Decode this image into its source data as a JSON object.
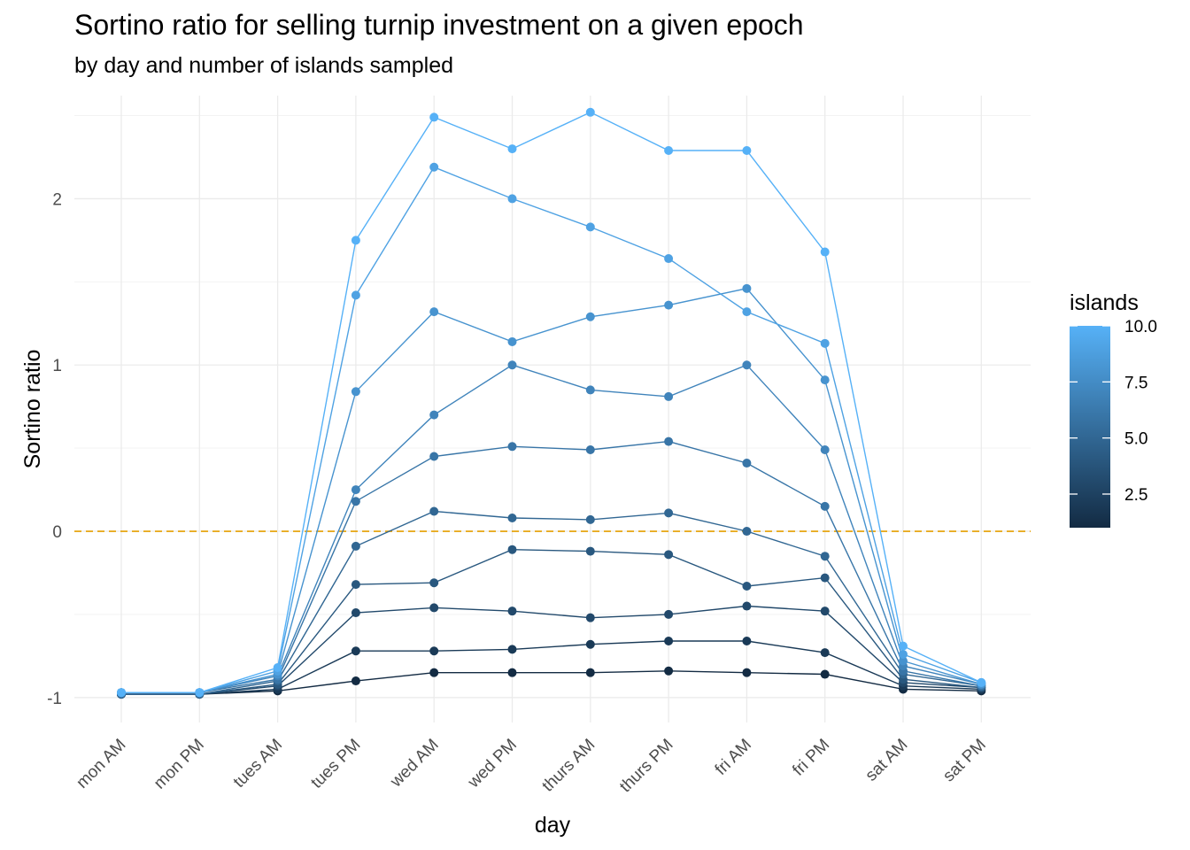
{
  "chart_data": {
    "type": "line",
    "title": "Sortino ratio for selling turnip investment on a given epoch",
    "subtitle": "by day and number of islands sampled",
    "xlabel": "day",
    "ylabel": "Sortino ratio",
    "ylim": [
      -1.15,
      2.62
    ],
    "yticks": [
      -1,
      0,
      1,
      2
    ],
    "grid": true,
    "categories": [
      "mon AM",
      "mon PM",
      "tues AM",
      "tues PM",
      "wed AM",
      "wed PM",
      "thurs AM",
      "thurs PM",
      "fri AM",
      "fri PM",
      "sat AM",
      "sat PM"
    ],
    "reference_line": {
      "y": 0,
      "color": "#E69F00",
      "style": "dashed"
    },
    "legend": {
      "title": "islands",
      "position": "right",
      "type": "colorbar",
      "range": [
        1,
        10
      ],
      "ticks": [
        "2.5",
        "5.0",
        "7.5",
        "10.0"
      ],
      "tick_values": [
        2.5,
        5.0,
        7.5,
        10.0
      ],
      "low_color": "#132B43",
      "high_color": "#56B1F7"
    },
    "series": [
      {
        "islands": 1,
        "values": [
          -0.98,
          -0.98,
          -0.96,
          -0.9,
          -0.85,
          -0.85,
          -0.85,
          -0.84,
          -0.85,
          -0.86,
          -0.95,
          -0.96
        ]
      },
      {
        "islands": 2,
        "values": [
          -0.98,
          -0.98,
          -0.95,
          -0.72,
          -0.72,
          -0.71,
          -0.68,
          -0.66,
          -0.66,
          -0.73,
          -0.93,
          -0.95
        ]
      },
      {
        "islands": 3,
        "values": [
          -0.98,
          -0.98,
          -0.93,
          -0.49,
          -0.46,
          -0.48,
          -0.52,
          -0.5,
          -0.45,
          -0.48,
          -0.91,
          -0.94
        ]
      },
      {
        "islands": 4,
        "values": [
          -0.98,
          -0.98,
          -0.92,
          -0.32,
          -0.31,
          -0.11,
          -0.12,
          -0.14,
          -0.33,
          -0.28,
          -0.89,
          -0.94
        ]
      },
      {
        "islands": 5,
        "values": [
          -0.98,
          -0.98,
          -0.9,
          -0.09,
          0.12,
          0.08,
          0.07,
          0.11,
          0.0,
          -0.15,
          -0.86,
          -0.93
        ]
      },
      {
        "islands": 6,
        "values": [
          -0.97,
          -0.97,
          -0.89,
          0.18,
          0.45,
          0.51,
          0.49,
          0.54,
          0.41,
          0.15,
          -0.84,
          -0.93
        ]
      },
      {
        "islands": 7,
        "values": [
          -0.97,
          -0.97,
          -0.87,
          0.25,
          0.7,
          1.0,
          0.85,
          0.81,
          1.0,
          0.49,
          -0.81,
          -0.92
        ]
      },
      {
        "islands": 8,
        "values": [
          -0.97,
          -0.97,
          -0.86,
          0.84,
          1.32,
          1.14,
          1.29,
          1.36,
          1.46,
          0.91,
          -0.78,
          -0.92
        ]
      },
      {
        "islands": 9,
        "values": [
          -0.97,
          -0.97,
          -0.84,
          1.42,
          2.19,
          2.0,
          1.83,
          1.64,
          1.32,
          1.13,
          -0.74,
          -0.91
        ]
      },
      {
        "islands": 10,
        "values": [
          -0.97,
          -0.97,
          -0.82,
          1.75,
          2.49,
          2.3,
          2.52,
          2.29,
          2.29,
          1.68,
          -0.69,
          -0.91
        ]
      }
    ]
  }
}
